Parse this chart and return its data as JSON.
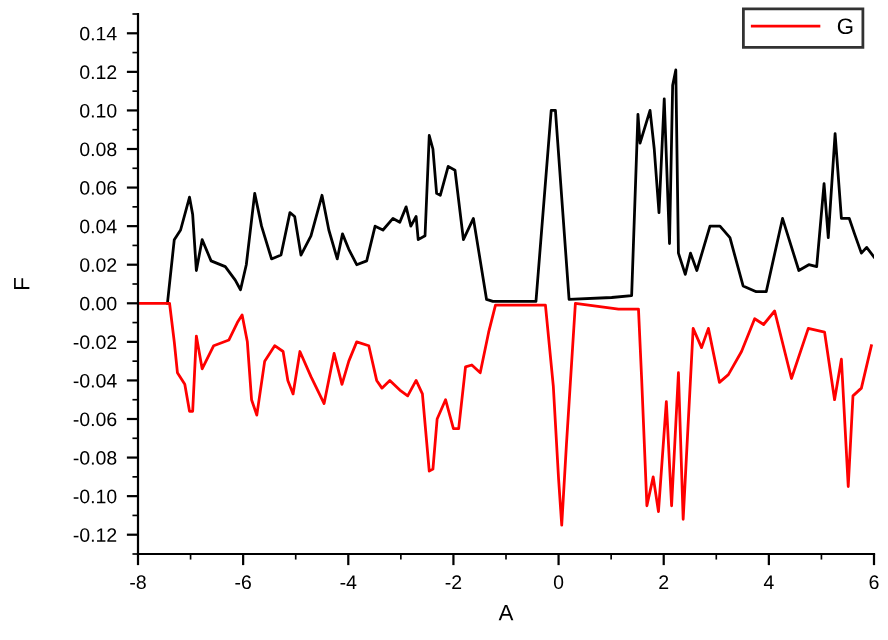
{
  "chart_data": {
    "type": "line",
    "xlabel": "A",
    "ylabel": "F",
    "xlim": [
      -8,
      6
    ],
    "xticks": [
      -8,
      -6,
      -4,
      -2,
      0,
      2,
      4,
      6
    ],
    "ylim": [
      -0.13,
      0.15
    ],
    "yticks": [
      {
        "value": -0.12,
        "label": "-0.12"
      },
      {
        "value": -0.1,
        "label": "-0.10"
      },
      {
        "value": -0.08,
        "label": "-0.08"
      },
      {
        "value": -0.06,
        "label": "-0.06"
      },
      {
        "value": -0.04,
        "label": "-0.04"
      },
      {
        "value": -0.02,
        "label": "-0.02"
      },
      {
        "value": 0,
        "label": "0.00"
      },
      {
        "value": 0.02,
        "label": "0.02"
      },
      {
        "value": 0.04,
        "label": "0.04"
      },
      {
        "value": 0.06,
        "label": "0.06"
      },
      {
        "value": 0.08,
        "label": "0.08"
      },
      {
        "value": 0.1,
        "label": "0.10"
      },
      {
        "value": 0.12,
        "label": "0.12"
      },
      {
        "value": 0.14,
        "label": "0.14"
      }
    ],
    "grid": false,
    "legend": "top right",
    "marker": "none",
    "line_style": "solid",
    "series": [
      {
        "color": "#000000",
        "x": [
          -7.44,
          -7.31,
          -7.19,
          -7.02,
          -6.96,
          -6.89,
          -6.78,
          -6.61,
          -6.34,
          -6.15,
          -6.05,
          -5.94,
          -5.78,
          -5.65,
          -5.46,
          -5.28,
          -5.11,
          -5.02,
          -4.9,
          -4.71,
          -4.5,
          -4.37,
          -4.21,
          -4.11,
          -3.99,
          -3.84,
          -3.65,
          -3.49,
          -3.34,
          -3.15,
          -3.02,
          -2.9,
          -2.81,
          -2.71,
          -2.67,
          -2.54,
          -2.46,
          -2.39,
          -2.32,
          -2.25,
          -2.1,
          -1.97,
          -1.81,
          -1.62,
          -1.37,
          -1.25,
          -0.43,
          -0.14,
          -0.06,
          0.2,
          1.01,
          1.39,
          1.51,
          1.55,
          1.74,
          1.82,
          1.91,
          2.01,
          2.11,
          2.17,
          2.23,
          2.28,
          2.41,
          2.51,
          2.63,
          2.88,
          3.07,
          3.26,
          3.51,
          3.76,
          3.95,
          4.26,
          4.57,
          4.76,
          4.91,
          5.05,
          5.13,
          5.26,
          5.38,
          5.53,
          5.63,
          5.76,
          5.86,
          6.0
        ],
        "values": [
          0.0,
          0.033,
          0.038,
          0.055,
          0.046,
          0.017,
          0.033,
          0.022,
          0.019,
          0.012,
          0.007,
          0.02,
          0.057,
          0.04,
          0.023,
          0.025,
          0.047,
          0.045,
          0.025,
          0.035,
          0.056,
          0.038,
          0.023,
          0.036,
          0.028,
          0.02,
          0.022,
          0.04,
          0.038,
          0.044,
          0.042,
          0.05,
          0.04,
          0.045,
          0.033,
          0.035,
          0.087,
          0.08,
          0.057,
          0.056,
          0.071,
          0.069,
          0.033,
          0.044,
          0.002,
          0.001,
          0.001,
          0.1,
          0.1,
          0.002,
          0.003,
          0.004,
          0.098,
          0.083,
          0.1,
          0.08,
          0.047,
          0.106,
          0.031,
          0.113,
          0.121,
          0.026,
          0.015,
          0.026,
          0.017,
          0.04,
          0.04,
          0.034,
          0.009,
          0.006,
          0.006,
          0.044,
          0.017,
          0.02,
          0.019,
          0.062,
          0.034,
          0.088,
          0.044,
          0.044,
          0.036,
          0.026,
          0.029,
          0.024
        ]
      },
      {
        "name": "G",
        "color": "#ff0000",
        "x": [
          -8,
          -7.4,
          -7.31,
          -7.25,
          -7.11,
          -7.02,
          -6.96,
          -6.89,
          -6.78,
          -6.56,
          -6.27,
          -6.11,
          -6.02,
          -5.92,
          -5.84,
          -5.74,
          -5.59,
          -5.4,
          -5.24,
          -5.15,
          -5.05,
          -4.92,
          -4.71,
          -4.46,
          -4.27,
          -4.12,
          -3.99,
          -3.84,
          -3.61,
          -3.46,
          -3.36,
          -3.21,
          -3.02,
          -2.87,
          -2.71,
          -2.59,
          -2.46,
          -2.39,
          -2.31,
          -2.15,
          -2.0,
          -1.9,
          -1.77,
          -1.65,
          -1.49,
          -1.33,
          -1.2,
          -0.25,
          -0.1,
          0.0,
          0.06,
          0.15,
          0.32,
          1.14,
          1.52,
          1.58,
          1.68,
          1.8,
          1.9,
          2.05,
          2.15,
          2.28,
          2.37,
          2.56,
          2.72,
          2.85,
          3.06,
          3.23,
          3.48,
          3.73,
          3.9,
          4.11,
          4.43,
          4.75,
          5.06,
          5.25,
          5.38,
          5.51,
          5.6,
          5.76,
          5.95
        ],
        "values": [
          0.0,
          0.0,
          -0.02,
          -0.036,
          -0.042,
          -0.056,
          -0.056,
          -0.017,
          -0.034,
          -0.022,
          -0.019,
          -0.01,
          -0.006,
          -0.02,
          -0.05,
          -0.058,
          -0.03,
          -0.022,
          -0.025,
          -0.04,
          -0.047,
          -0.025,
          -0.038,
          -0.052,
          -0.026,
          -0.042,
          -0.03,
          -0.02,
          -0.022,
          -0.04,
          -0.044,
          -0.04,
          -0.045,
          -0.048,
          -0.04,
          -0.047,
          -0.087,
          -0.086,
          -0.06,
          -0.05,
          -0.065,
          -0.065,
          -0.033,
          -0.032,
          -0.036,
          -0.015,
          -0.001,
          -0.001,
          -0.043,
          -0.091,
          -0.115,
          -0.073,
          0.0,
          -0.003,
          -0.003,
          -0.039,
          -0.105,
          -0.09,
          -0.108,
          -0.051,
          -0.105,
          -0.036,
          -0.112,
          -0.013,
          -0.023,
          -0.013,
          -0.041,
          -0.037,
          -0.025,
          -0.008,
          -0.011,
          -0.004,
          -0.039,
          -0.013,
          -0.015,
          -0.05,
          -0.029,
          -0.095,
          -0.048,
          -0.044,
          -0.022
        ]
      }
    ]
  }
}
